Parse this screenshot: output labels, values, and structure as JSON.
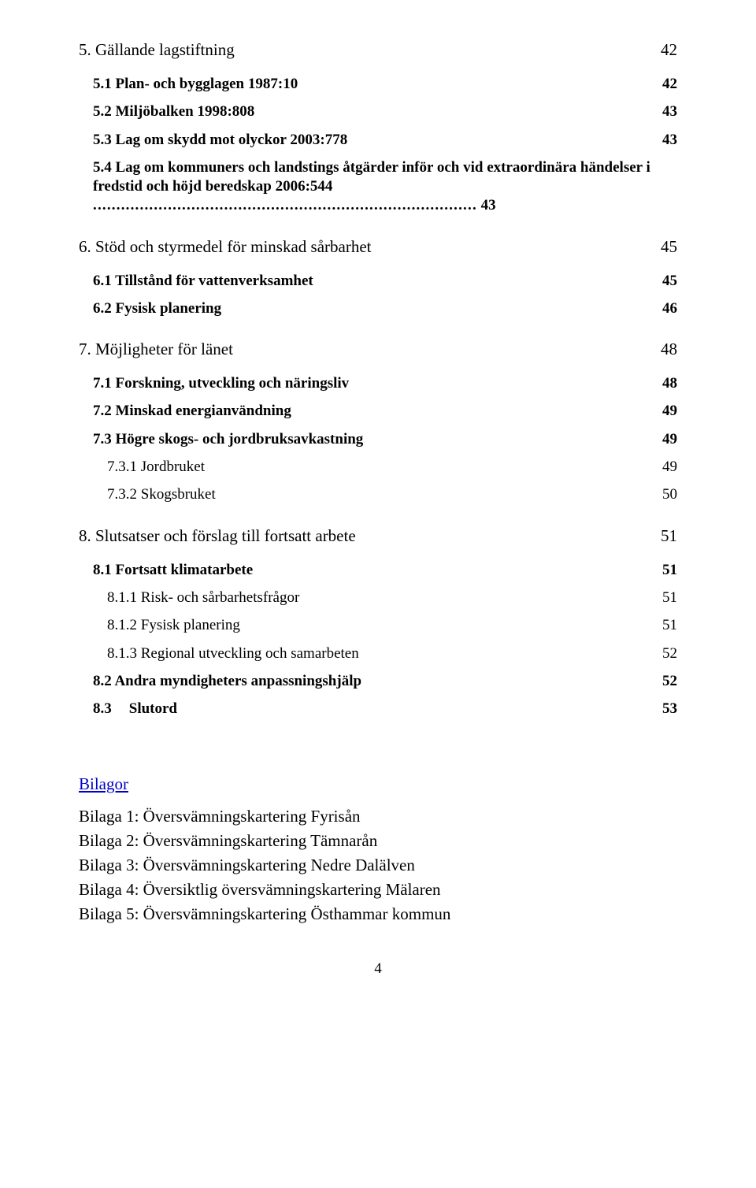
{
  "toc": [
    {
      "level": 0,
      "title": "5. Gällande lagstiftning",
      "page": "42",
      "gap": "none"
    },
    {
      "level": 1,
      "title": "5.1 Plan- och bygglagen 1987:10",
      "page": "42",
      "gap": "md"
    },
    {
      "level": 1,
      "title": "5.2 Miljöbalken 1998:808",
      "page": "43",
      "gap": "sm"
    },
    {
      "level": 1,
      "title": "5.3 Lag om skydd mot olyckor 2003:778",
      "page": "43",
      "gap": "sm"
    },
    {
      "level": 1,
      "title": "5.4 Lag om kommuners och landstings åtgärder inför och vid extraordinära händelser i fredstid och höjd beredskap 2006:544",
      "page": "43",
      "gap": "sm",
      "wrap": true
    },
    {
      "level": 0,
      "title": "6. Stöd och styrmedel för minskad sårbarhet",
      "page": "45",
      "gap": "lg"
    },
    {
      "level": 1,
      "title": "6.1 Tillstånd för vattenverksamhet",
      "page": "45",
      "gap": "md"
    },
    {
      "level": 1,
      "title": "6.2 Fysisk planering",
      "page": "46",
      "gap": "sm"
    },
    {
      "level": 0,
      "title": "7. Möjligheter för länet",
      "page": "48",
      "gap": "lg"
    },
    {
      "level": 1,
      "title": "7.1 Forskning, utveckling och näringsliv",
      "page": "48",
      "gap": "md"
    },
    {
      "level": 1,
      "title": "7.2 Minskad energianvändning",
      "page": "49",
      "gap": "sm"
    },
    {
      "level": 1,
      "title": "7.3 Högre skogs- och jordbruksavkastning",
      "page": "49",
      "gap": "sm"
    },
    {
      "level": 2,
      "title": "7.3.1 Jordbruket",
      "page": "49",
      "gap": "sm"
    },
    {
      "level": 2,
      "title": "7.3.2 Skogsbruket",
      "page": "50",
      "gap": "sm"
    },
    {
      "level": 0,
      "title": "8. Slutsatser och förslag till fortsatt arbete",
      "page": "51",
      "gap": "lg"
    },
    {
      "level": 1,
      "title": "8.1 Fortsatt klimatarbete",
      "page": "51",
      "gap": "md"
    },
    {
      "level": 2,
      "title": "8.1.1 Risk- och sårbarhetsfrågor",
      "page": "51",
      "gap": "sm"
    },
    {
      "level": 2,
      "title": "8.1.2 Fysisk planering",
      "page": "51",
      "gap": "sm"
    },
    {
      "level": 2,
      "title": "8.1.3 Regional utveckling och samarbeten",
      "page": "52",
      "gap": "sm"
    },
    {
      "level": 1,
      "title": "8.2 Andra myndigheters anpassningshjälp",
      "page": "52",
      "gap": "sm"
    },
    {
      "level": 1,
      "title": "8.3    Slutord",
      "page": "53",
      "gap": "sm",
      "tabbed": true
    }
  ],
  "bilagor_heading": "Bilagor",
  "bilagor": [
    "Bilaga 1: Översvämningskartering Fyrisån",
    "Bilaga 2: Översvämningskartering Tämnarån",
    "Bilaga 3: Översvämningskartering Nedre Dalälven",
    "Bilaga 4: Översiktlig översvämningskartering Mälaren",
    "Bilaga 5: Översvämningskartering Östhammar kommun"
  ],
  "page_number": "4",
  "colors": {
    "text": "#000000",
    "bilagor_link": "#0000c8",
    "background": "#ffffff"
  },
  "fonts": {
    "family": "Times New Roman",
    "body_pt": 16,
    "l1_pt": 14,
    "l2_pt": 14
  }
}
